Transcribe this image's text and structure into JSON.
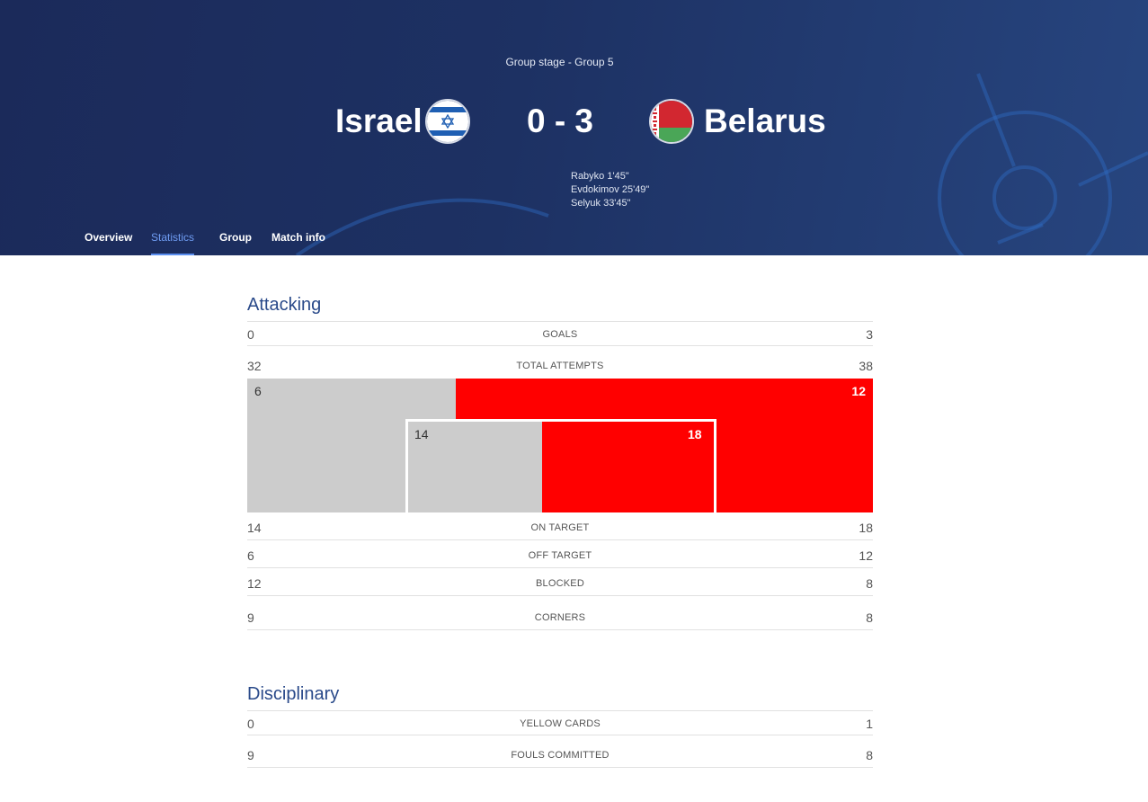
{
  "header": {
    "stage": "Group stage - Group 5",
    "home_team": "Israel",
    "away_team": "Belarus",
    "score": "0 - 3",
    "scorers": [
      "Rabyko 1'45\"",
      "Evdokimov 25'49\"",
      "Selyuk 33'45\""
    ],
    "flags": {
      "home": "israel-flag",
      "away": "belarus-flag"
    }
  },
  "tabs": [
    {
      "label": "Overview",
      "active": false
    },
    {
      "label": "Statistics",
      "active": true
    },
    {
      "label": "Group",
      "active": false
    },
    {
      "label": "Match info",
      "active": false
    }
  ],
  "attacking": {
    "title": "Attacking",
    "goals": {
      "label": "GOALS",
      "home": "0",
      "away": "3"
    },
    "total_attempts": {
      "label": "TOTAL ATTEMPTS",
      "home": "32",
      "away": "38"
    },
    "on_target": {
      "label": "ON TARGET",
      "home": "14",
      "away": "18"
    },
    "off_target": {
      "label": "OFF TARGET",
      "home": "6",
      "away": "12"
    },
    "blocked": {
      "label": "BLOCKED",
      "home": "12",
      "away": "8"
    },
    "corners": {
      "label": "CORNERS",
      "home": "9",
      "away": "8"
    }
  },
  "disciplinary": {
    "title": "Disciplinary",
    "yellow_cards": {
      "label": "YELLOW CARDS",
      "home": "0",
      "away": "1"
    },
    "fouls": {
      "label": "FOULS COMMITTED",
      "home": "9",
      "away": "8"
    }
  },
  "colors": {
    "home": "#cccccc",
    "away": "#ff0000",
    "accent": "#5b8ff0",
    "section_title": "#2a4a8a"
  },
  "chart_data": {
    "type": "bar",
    "title": "",
    "categories": [
      "Off target",
      "On target"
    ],
    "series": [
      {
        "name": "Israel",
        "values": [
          6,
          14
        ]
      },
      {
        "name": "Belarus",
        "values": [
          12,
          18
        ]
      }
    ]
  }
}
